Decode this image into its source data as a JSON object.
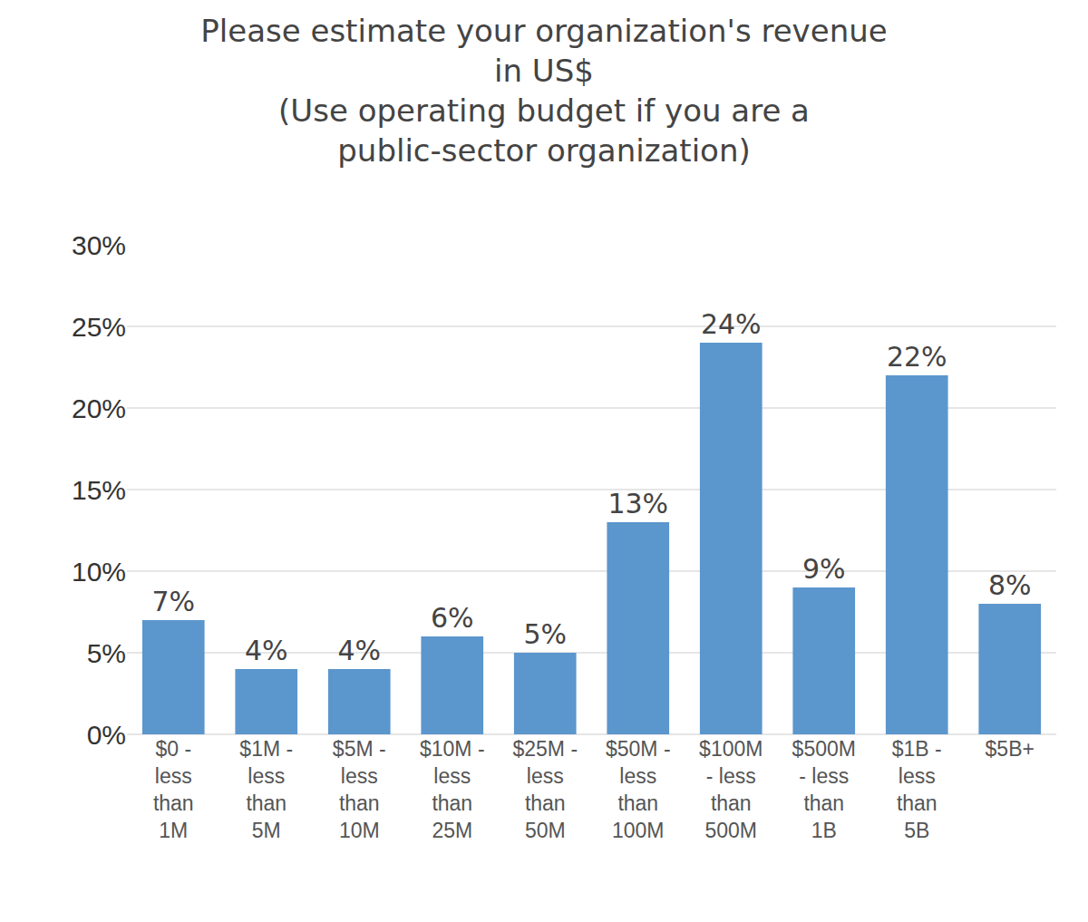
{
  "chart_data": {
    "type": "bar",
    "title": "Please estimate your organization's revenue\nin US$\n(Use operating budget if you are a\npublic-sector organization)",
    "categories": [
      "$0 - less than 1M",
      "$1M - less than 5M",
      "$5M - less than 10M",
      "$10M - less than 25M",
      "$25M - less than 50M",
      "$50M - less than 100M",
      "$100M - less than 500M",
      "$500M - less than 1B",
      "$1B - less than 5B",
      "$5B+"
    ],
    "values": [
      7,
      4,
      4,
      6,
      5,
      13,
      24,
      9,
      22,
      8
    ],
    "value_labels": [
      "7%",
      "4%",
      "4%",
      "6%",
      "5%",
      "13%",
      "24%",
      "9%",
      "22%",
      "8%"
    ],
    "data_labels": true,
    "color": "#5b96cd",
    "ylim": [
      0,
      30
    ],
    "yticks": [
      {
        "value": 0,
        "label": "0%"
      },
      {
        "value": 5,
        "label": "5%"
      },
      {
        "value": 10,
        "label": "10%"
      },
      {
        "value": 15,
        "label": "15%"
      },
      {
        "value": 20,
        "label": "20%"
      },
      {
        "value": 25,
        "label": "25%"
      },
      {
        "value": 30,
        "label": "30%"
      }
    ],
    "grid": true
  }
}
